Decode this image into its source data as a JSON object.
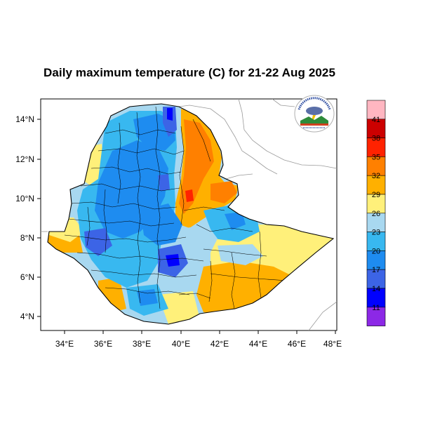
{
  "title": "Daily maximum temperature (C) for 21-22 Aug 2025",
  "map": {
    "lon_range": [
      33,
      48.2
    ],
    "lat_range": [
      3.2,
      15
    ],
    "lon_ticks": [
      "34°E",
      "36°E",
      "38°E",
      "40°E",
      "42°E",
      "44°E",
      "46°E",
      "48°E"
    ],
    "lat_ticks": [
      "14°N",
      "12°N",
      "10°N",
      "8°N",
      "6°N",
      "4°N"
    ],
    "background": "#ffffff",
    "logo": "ethiopian-meteorology-institute-logo"
  },
  "colorbar": {
    "labels": [
      "41",
      "38",
      "35",
      "32",
      "29",
      "26",
      "23",
      "20",
      "17",
      "14",
      "11"
    ],
    "colors": [
      "#ffb6c1",
      "#cc0000",
      "#ff2200",
      "#ff8000",
      "#ffb000",
      "#fff07a",
      "#a8d8f0",
      "#38b8f0",
      "#1e8cf0",
      "#3c64e6",
      "#0000ff",
      "#8c28e6"
    ]
  },
  "palette": {
    "cool": "#38b8f0",
    "light_blue": "#a8d8f0",
    "blue": "#1e8cf0",
    "deep_blue": "#3c64e6",
    "yellow": "#fff07a",
    "orange_light": "#ffb000",
    "orange": "#ff8000",
    "red": "#ff2200"
  }
}
